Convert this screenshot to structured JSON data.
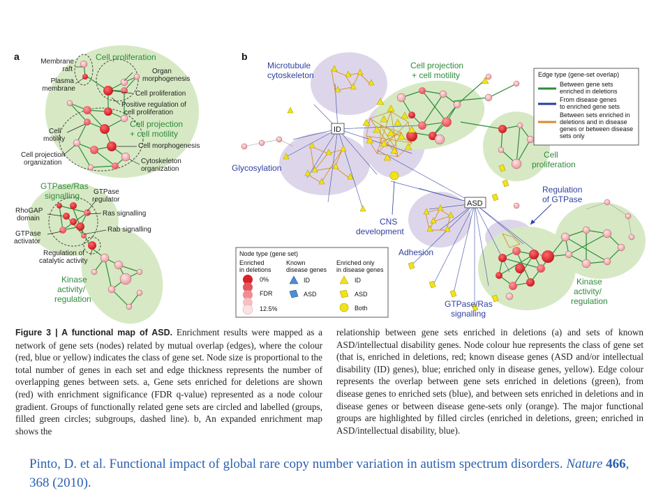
{
  "panel_a": {
    "label": "a",
    "groups": {
      "cell_proliferation": "Cell proliferation",
      "cell_projection_1": "Cell projection",
      "cell_projection_2": "+ cell motility",
      "gtpase_ras_1": "GTPase/Ras",
      "gtpase_ras_2": "signalling",
      "kinase_1": "Kinase",
      "kinase_2": "activity/",
      "kinase_3": "regulation"
    },
    "nodes": {
      "membrane_raft_1": "Membrane",
      "membrane_raft_2": "raft",
      "plasma_membrane_1": "Plasma",
      "plasma_membrane_2": "membrane",
      "organ_morph_1": "Organ",
      "organ_morph_2": "morphogenesis",
      "cell_proliferation": "Cell proliferation",
      "pos_reg_1": "Positive regulation of",
      "pos_reg_2": "cell proliferation",
      "cell_motility_1": "Cell",
      "cell_motility_2": "motility",
      "cell_morphogenesis": "Cell morphogenesis",
      "cell_proj_org_1": "Cell projection",
      "cell_proj_org_2": "organization",
      "cytoskeleton_org_1": "Cytoskeleton",
      "cytoskeleton_org_2": "organization",
      "gtpase_regulator_1": "GTPase",
      "gtpase_regulator_2": "regulator",
      "rhogap_1": "RhoGAP",
      "rhogap_2": "domain",
      "ras_signalling": "Ras signalling",
      "gtpase_activator_1": "GTPase",
      "gtpase_activator_2": "activator",
      "rab_signalling": "Rab signalling",
      "reg_catalytic_1": "Regulation of",
      "reg_catalytic_2": "catalytic activity"
    }
  },
  "panel_b": {
    "label": "b",
    "groups": {
      "microtubule_1": "Microtubule",
      "microtubule_2": "cytoskeleton",
      "cell_projection_1": "Cell projection",
      "cell_projection_2": "+ cell motility",
      "id_box": "ID",
      "glycosylation": "Glycosylation",
      "cell_prolif_1": "Cell",
      "cell_prolif_2": "proliferation",
      "regulation_gtpase_1": "Regulation",
      "regulation_gtpase_2": "of GTPase",
      "asd_box": "ASD",
      "cns_1": "CNS",
      "cns_2": "development",
      "adhesion": "Adhesion",
      "kinase_1": "Kinase",
      "kinase_2": "activity/",
      "kinase_3": "regulation",
      "gtpase_ras_1": "GTPase/Ras",
      "gtpase_ras_2": "signalling"
    },
    "edge_legend": {
      "title": "Edge type (gene-set overlap)",
      "items": [
        {
          "line1": "Between gene sets",
          "line2": "enriched in deletions",
          "line3": "",
          "line4": "",
          "color": "#2e8b3a"
        },
        {
          "line1": "From disease genes",
          "line2": "to enriched gene sets",
          "line3": "",
          "line4": "",
          "color": "#2a3a9e"
        },
        {
          "line1": "Between sets enriched in",
          "line2": "deletions and in disease",
          "line3": "genes or between disease",
          "line4": "sets only",
          "color": "#d98a2a"
        }
      ]
    },
    "node_legend": {
      "title": "Node type (gene set)",
      "col1_1": "Enriched",
      "col1_2": "in deletions",
      "col2_1": "Known",
      "col2_2": "disease genes",
      "col3_1": "Enriched only",
      "col3_2": "in disease genes",
      "pct_top": "0%",
      "fdr": "FDR",
      "pct_bottom": "12.5%",
      "id": "ID",
      "asd": "ASD",
      "id2": "ID",
      "asd2": "ASD",
      "both": "Both"
    }
  },
  "caption": {
    "fig_label": "Figure 3 | A functional map of ASD.",
    "col1_text": "Enrichment results were mapped as a network of gene sets (nodes) related by mutual overlap (edges), where the colour (red, blue or yellow) indicates the class of gene set. Node size is proportional to the total number of genes in each set and edge thickness represents the number of overlapping genes between sets. a, Gene sets enriched for deletions are shown (red) with enrichment significance (FDR q-value) represented as a node colour gradient. Groups of functionally related gene sets are circled and labelled (groups, filled green circles; subgroups, dashed line). b, An expanded enrichment map shows the",
    "col2_text": "relationship between gene sets enriched in deletions (a) and sets of known ASD/intellectual disability genes. Node colour hue represents the class of gene set (that is, enriched in deletions, red; known disease genes (ASD and/or intellectual disability (ID) genes), blue; enriched only in disease genes, yellow). Edge colour represents the overlap between gene sets enriched in deletions (green), from disease genes to enriched sets (blue), and between sets enriched in deletions and in disease genes or between disease gene-sets only (orange). The major functional groups are highlighted by filled circles (enriched in deletions, green; enriched in ASD/intellectual disability, blue)."
  },
  "citation": {
    "authors": "Pinto, D. et al. Functional impact of global rare copy number variation in autism spectrum disorders. ",
    "journal": "Nature",
    "volume": "466",
    "pages": ", 368 (2010)."
  },
  "colors": {
    "green_group": "#d6e9c4",
    "purple_group": "#ddd6ea",
    "red_node": "#d9212b",
    "pink_node": "#f2b6ba",
    "green_edge": "#2e8b3a",
    "blue_edge": "#2a3a9e",
    "orange_edge": "#d98a2a",
    "yellow_node": "#f2e21a",
    "citation_blue": "#2a60b0"
  }
}
